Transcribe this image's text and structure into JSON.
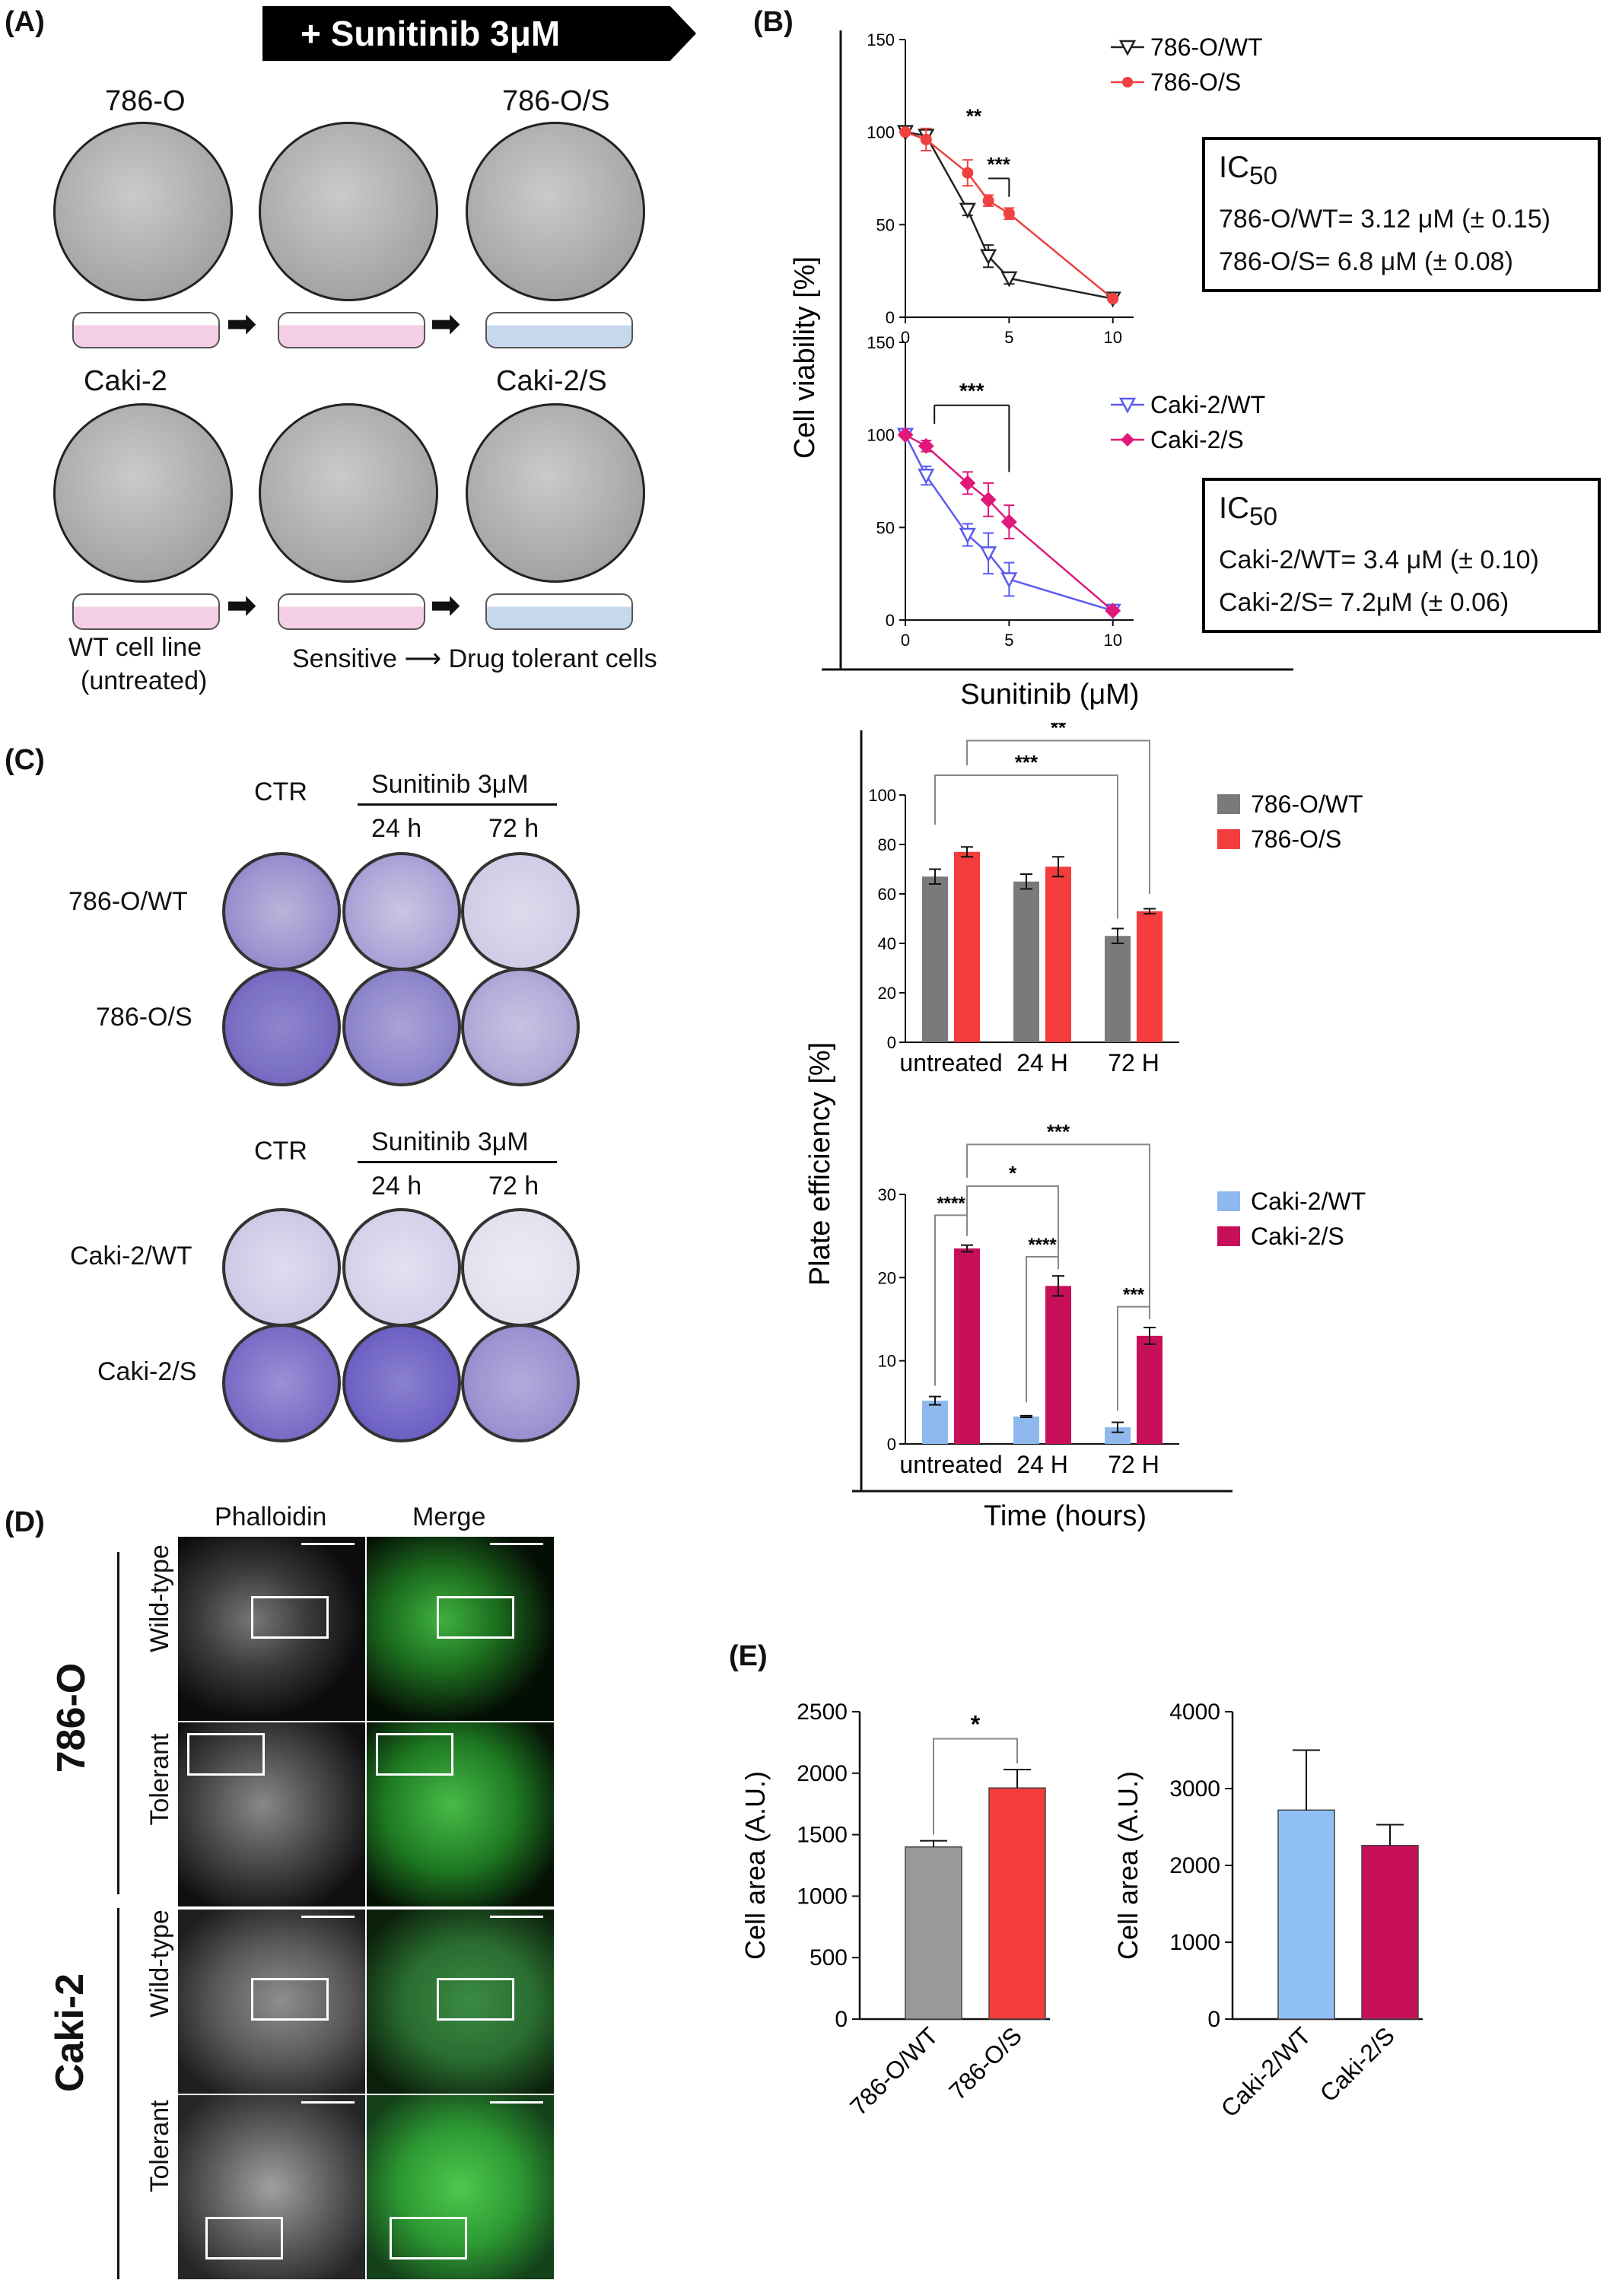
{
  "panels": {
    "A": "(A)",
    "B": "(B)",
    "C": "(C)",
    "D": "(D)",
    "E": "(E)"
  },
  "panelA": {
    "banner": "+ Sunitinib 3μM",
    "row1_left": "786-O",
    "row1_right": "786-O/S",
    "row2_left": "Caki-2",
    "row2_right": "Caki-2/S",
    "wt_line1": "WT cell line",
    "wt_line2": "(untreated)",
    "sensitive": "Sensitive ⟶ Drug tolerant cells"
  },
  "ic50_786": {
    "title": "IC",
    "sub": "50",
    "line1": "786-O/WT= 3.12 μM (± 0.15)",
    "line2": "786-O/S= 6.8 μM (± 0.08)"
  },
  "ic50_caki": {
    "title": "IC",
    "sub": "50",
    "line1": "Caki-2/WT= 3.4 μM (± 0.10)",
    "line2": "Caki-2/S= 7.2μM (± 0.06)"
  },
  "panelC": {
    "ctr": "CTR",
    "sun": "Sunitinib 3μM",
    "h24": "24 h",
    "h72": "72 h",
    "r1": "786-O/WT",
    "r2": "786-O/S",
    "r3": "Caki-2/WT",
    "r4": "Caki-2/S"
  },
  "panelD": {
    "phalloidin": "Phalloidin",
    "merge": "Merge",
    "line1": "786-O",
    "line2": "Caki-2",
    "wt": "Wild-type",
    "tol": "Tolerant"
  },
  "colors": {
    "wt786": "#222222",
    "s786": "#f04040",
    "wtcaki": "#5b5bf0",
    "scaki": "#e0187a",
    "bar_wt786": "#7a7a7a",
    "bar_s786": "#f53c3c",
    "bar_wtcaki": "#8fb8ee",
    "bar_scaki": "#c8105a",
    "e_wt786": "#9a9a9a",
    "e_s786": "#f53c3c",
    "e_wtcaki": "#8fc0f5",
    "e_scaki": "#c8105a"
  },
  "chart_data": [
    {
      "type": "line",
      "id": "B1",
      "ylabel": "Cell viability [%]",
      "xlabel": "Sunitinib (μM)",
      "ylim": [
        0,
        150
      ],
      "xlim": [
        0,
        11
      ],
      "xticks": [
        0,
        5,
        10
      ],
      "yticks": [
        0,
        50,
        100,
        150
      ],
      "series": [
        {
          "name": "786-O/WT",
          "marker": "triangle-down",
          "x": [
            0,
            1,
            3,
            4,
            5,
            10
          ],
          "y": [
            100,
            98,
            58,
            33,
            21,
            10
          ],
          "err": [
            1,
            3,
            3,
            6,
            3,
            1
          ]
        },
        {
          "name": "786-O/S",
          "marker": "circle",
          "x": [
            0,
            1,
            3,
            4,
            5,
            10
          ],
          "y": [
            100,
            96,
            78,
            63,
            56,
            10
          ],
          "err": [
            1,
            6,
            7,
            3,
            3,
            1
          ]
        }
      ],
      "annotations": [
        "**",
        "***"
      ]
    },
    {
      "type": "line",
      "id": "B2",
      "ylim": [
        0,
        150
      ],
      "xlim": [
        0,
        11
      ],
      "xticks": [
        0,
        5,
        10
      ],
      "yticks": [
        0,
        50,
        100,
        150
      ],
      "series": [
        {
          "name": "Caki-2/WT",
          "marker": "triangle-down",
          "x": [
            0,
            1,
            3,
            4,
            5,
            10
          ],
          "y": [
            100,
            78,
            46,
            36,
            22,
            5
          ],
          "err": [
            1,
            5,
            6,
            11,
            9,
            1
          ]
        },
        {
          "name": "Caki-2/S",
          "marker": "diamond",
          "x": [
            0,
            1,
            3,
            4,
            5,
            10
          ],
          "y": [
            100,
            94,
            74,
            65,
            53,
            5
          ],
          "err": [
            1,
            3,
            6,
            9,
            9,
            1
          ]
        }
      ],
      "annotations": [
        "***"
      ]
    },
    {
      "type": "bar",
      "id": "C1",
      "ylabel": "Plate efficiency [%]",
      "xlabel": "Time (hours)",
      "categories": [
        "untreated",
        "24 H",
        "72 H"
      ],
      "ylim": [
        0,
        100
      ],
      "yticks": [
        0,
        20,
        40,
        60,
        80,
        100
      ],
      "series": [
        {
          "name": "786-O/WT",
          "values": [
            67,
            65,
            43
          ],
          "err": [
            3,
            3,
            3
          ]
        },
        {
          "name": "786-O/S",
          "values": [
            77,
            71,
            53
          ],
          "err": [
            2,
            4,
            1
          ]
        }
      ],
      "annotations": [
        "**",
        "***"
      ]
    },
    {
      "type": "bar",
      "id": "C2",
      "categories": [
        "untreated",
        "24 H",
        "72 H"
      ],
      "ylim": [
        0,
        30
      ],
      "yticks": [
        0,
        10,
        20,
        30
      ],
      "series": [
        {
          "name": "Caki-2/WT",
          "values": [
            5.2,
            3.3,
            2.0
          ],
          "err": [
            0.5,
            0.1,
            0.6
          ]
        },
        {
          "name": "Caki-2/S",
          "values": [
            23.5,
            19,
            13
          ],
          "err": [
            0.4,
            1.2,
            1.0
          ]
        }
      ],
      "annotations": [
        "***",
        "*",
        "****",
        "****",
        "***"
      ]
    },
    {
      "type": "bar",
      "id": "E1",
      "ylabel": "Cell area (A.U.)",
      "categories": [
        "786-O/WT",
        "786-O/S"
      ],
      "ylim": [
        0,
        2500
      ],
      "yticks": [
        0,
        500,
        1000,
        1500,
        2000,
        2500
      ],
      "values": [
        1400,
        1880
      ],
      "err": [
        50,
        150
      ],
      "annotations": [
        "*"
      ]
    },
    {
      "type": "bar",
      "id": "E2",
      "ylabel": "Cell area (A.U.)",
      "categories": [
        "Caki-2/WT",
        "Caki-2/S"
      ],
      "ylim": [
        0,
        4000
      ],
      "yticks": [
        0,
        1000,
        2000,
        3000,
        4000
      ],
      "values": [
        2720,
        2260
      ],
      "err": [
        780,
        270
      ]
    }
  ]
}
